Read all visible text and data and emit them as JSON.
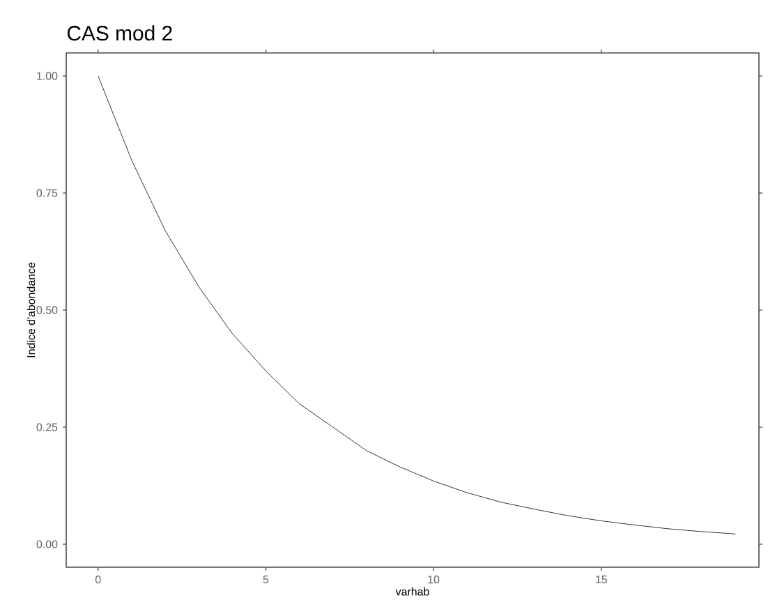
{
  "chart_data": {
    "type": "line",
    "title": "CAS mod 2",
    "xlabel": "varhab",
    "ylabel": "Indice d'abondance",
    "x": [
      0,
      1,
      2,
      3,
      4,
      5,
      6,
      7,
      8,
      9,
      10,
      11,
      12,
      13,
      14,
      15,
      16,
      17,
      18,
      19
    ],
    "series": [
      {
        "color": "#000000",
        "values": [
          1.0,
          0.82,
          0.67,
          0.55,
          0.45,
          0.37,
          0.3,
          0.25,
          0.2,
          0.165,
          0.135,
          0.11,
          0.09,
          0.075,
          0.061,
          0.05,
          0.041,
          0.033,
          0.027,
          0.022
        ]
      }
    ],
    "xlim": [
      -0.95,
      19.7
    ],
    "ylim": [
      -0.049,
      1.049
    ],
    "xticks": [
      0,
      5,
      10,
      15
    ],
    "yticks": [
      {
        "value": 0,
        "label": "0.00"
      },
      {
        "value": 0.25,
        "label": "0.25"
      },
      {
        "value": 0.5,
        "label": "0.50"
      },
      {
        "value": 0.75,
        "label": "0.75"
      },
      {
        "value": 1,
        "label": "1.00"
      }
    ],
    "grid": false,
    "marker": "none",
    "line_style": "solid"
  }
}
